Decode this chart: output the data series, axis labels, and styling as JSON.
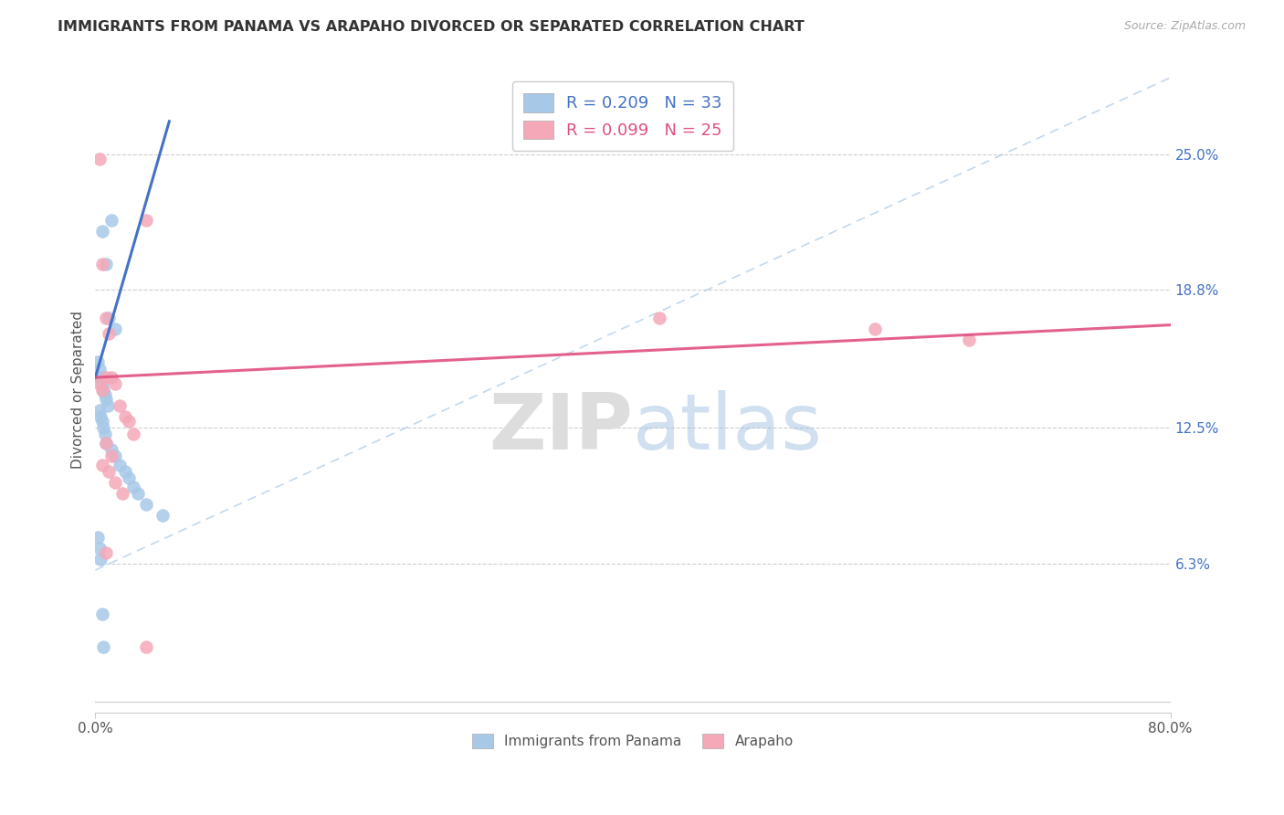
{
  "title": "IMMIGRANTS FROM PANAMA VS ARAPAHO DIVORCED OR SEPARATED CORRELATION CHART",
  "source": "Source: ZipAtlas.com",
  "ylabel": "Divorced or Separated",
  "ytick_labels": [
    "25.0%",
    "18.8%",
    "12.5%",
    "6.3%"
  ],
  "ytick_values": [
    0.25,
    0.188,
    0.125,
    0.063
  ],
  "xlim": [
    0.0,
    0.8
  ],
  "ylim": [
    -0.005,
    0.29
  ],
  "blue_color": "#a8c8e8",
  "pink_color": "#f4a8b8",
  "trend_blue": "#4472c4",
  "trend_pink": "#e05080",
  "dash_color": "#a8c8e8",
  "blue_scatter_x": [
    0.005,
    0.008,
    0.01,
    0.012,
    0.015,
    0.002,
    0.003,
    0.004,
    0.005,
    0.006,
    0.007,
    0.008,
    0.009,
    0.003,
    0.004,
    0.005,
    0.006,
    0.007,
    0.008,
    0.012,
    0.015,
    0.018,
    0.022,
    0.025,
    0.028,
    0.032,
    0.038,
    0.05,
    0.002,
    0.003,
    0.004,
    0.005,
    0.006
  ],
  "blue_scatter_y": [
    0.215,
    0.2,
    0.175,
    0.22,
    0.17,
    0.155,
    0.152,
    0.148,
    0.145,
    0.142,
    0.14,
    0.138,
    0.135,
    0.133,
    0.13,
    0.128,
    0.125,
    0.122,
    0.118,
    0.115,
    0.112,
    0.108,
    0.105,
    0.102,
    0.098,
    0.095,
    0.09,
    0.085,
    0.075,
    0.07,
    0.065,
    0.04,
    0.025
  ],
  "pink_scatter_x": [
    0.003,
    0.005,
    0.008,
    0.01,
    0.012,
    0.015,
    0.018,
    0.022,
    0.025,
    0.028,
    0.008,
    0.012,
    0.005,
    0.01,
    0.015,
    0.02,
    0.008,
    0.003,
    0.005,
    0.038,
    0.42,
    0.58,
    0.65,
    0.008,
    0.038
  ],
  "pink_scatter_y": [
    0.248,
    0.2,
    0.175,
    0.168,
    0.148,
    0.145,
    0.135,
    0.13,
    0.128,
    0.122,
    0.118,
    0.112,
    0.108,
    0.105,
    0.1,
    0.095,
    0.148,
    0.145,
    0.142,
    0.22,
    0.175,
    0.17,
    0.165,
    0.068,
    0.025
  ],
  "blue_trend_x": [
    0.0,
    0.055
  ],
  "blue_trend_y": [
    0.148,
    0.265
  ],
  "pink_trend_x": [
    0.0,
    0.8
  ],
  "pink_trend_y": [
    0.148,
    0.172
  ],
  "dash_line_x": [
    0.0,
    0.8
  ],
  "dash_line_y": [
    0.06,
    0.285
  ]
}
